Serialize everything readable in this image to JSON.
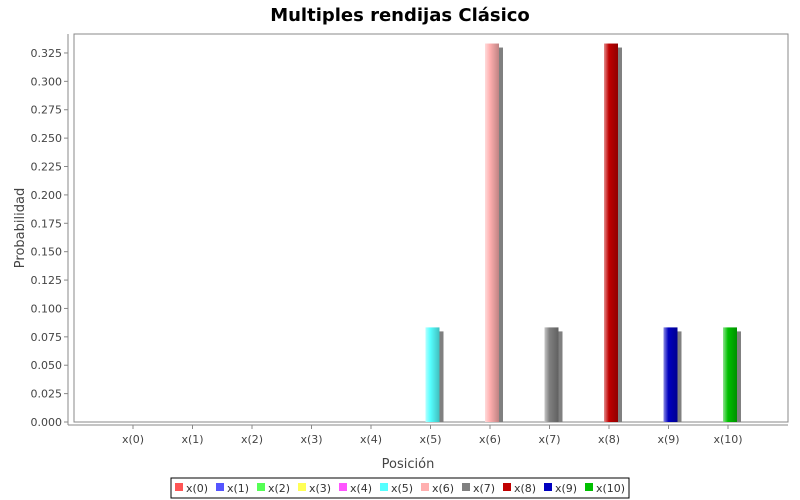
{
  "chart_data": {
    "type": "bar",
    "title": "Multiples rendijas Clásico",
    "xlabel": "Posición",
    "ylabel": "Probabilidad",
    "ylim": [
      0,
      0.3417
    ],
    "y_ticks": [
      "0.000",
      "0.025",
      "0.050",
      "0.075",
      "0.100",
      "0.125",
      "0.150",
      "0.175",
      "0.200",
      "0.225",
      "0.250",
      "0.275",
      "0.300",
      "0.325"
    ],
    "categories": [
      "x(0)",
      "x(1)",
      "x(2)",
      "x(3)",
      "x(4)",
      "x(5)",
      "x(6)",
      "x(7)",
      "x(8)",
      "x(9)",
      "x(10)"
    ],
    "series": [
      {
        "name": "x(0)",
        "color": "#ff5555",
        "values": [
          0,
          0,
          0,
          0,
          0,
          0,
          0,
          0,
          0,
          0,
          0
        ]
      },
      {
        "name": "x(1)",
        "color": "#5555ff",
        "values": [
          0,
          0,
          0,
          0,
          0,
          0,
          0,
          0,
          0,
          0,
          0
        ]
      },
      {
        "name": "x(2)",
        "color": "#55ff55",
        "values": [
          0,
          0,
          0,
          0,
          0,
          0,
          0,
          0,
          0,
          0,
          0
        ]
      },
      {
        "name": "x(3)",
        "color": "#ffff55",
        "values": [
          0,
          0,
          0,
          0,
          0,
          0,
          0,
          0,
          0,
          0,
          0
        ]
      },
      {
        "name": "x(4)",
        "color": "#ff55ff",
        "values": [
          0,
          0,
          0,
          0,
          0,
          0,
          0,
          0,
          0,
          0,
          0
        ]
      },
      {
        "name": "x(5)",
        "color": "#55ffff",
        "values": [
          0,
          0,
          0,
          0,
          0,
          0.0833,
          0,
          0,
          0,
          0,
          0
        ]
      },
      {
        "name": "x(6)",
        "color": "#ffafaf",
        "values": [
          0,
          0,
          0,
          0,
          0,
          0,
          0.3333,
          0,
          0,
          0,
          0
        ]
      },
      {
        "name": "x(7)",
        "color": "#808080",
        "values": [
          0,
          0,
          0,
          0,
          0,
          0,
          0,
          0.0833,
          0,
          0,
          0
        ]
      },
      {
        "name": "x(8)",
        "color": "#c00000",
        "values": [
          0,
          0,
          0,
          0,
          0,
          0,
          0,
          0,
          0.3333,
          0,
          0
        ]
      },
      {
        "name": "x(9)",
        "color": "#0000c0",
        "values": [
          0,
          0,
          0,
          0,
          0,
          0,
          0,
          0,
          0,
          0.0833,
          0
        ]
      },
      {
        "name": "x(10)",
        "color": "#00c000",
        "values": [
          0,
          0,
          0,
          0,
          0,
          0,
          0,
          0,
          0,
          0,
          0.0833
        ]
      }
    ],
    "grid": false,
    "legend": "bottom"
  }
}
